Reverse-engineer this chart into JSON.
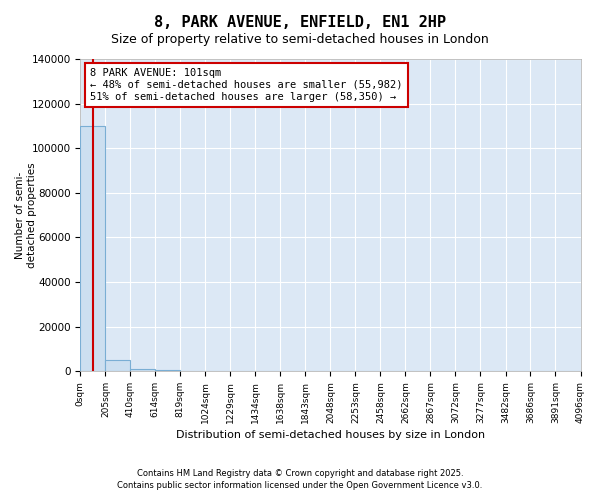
{
  "title": "8, PARK AVENUE, ENFIELD, EN1 2HP",
  "subtitle": "Size of property relative to semi-detached houses in London",
  "xlabel": "Distribution of semi-detached houses by size in London",
  "ylabel": "Number of semi-\ndetached properties",
  "annotation_title": "8 PARK AVENUE: 101sqm",
  "annotation_line1": "← 48% of semi-detached houses are smaller (55,982)",
  "annotation_line2": "51% of semi-detached houses are larger (58,350) →",
  "property_size": 101,
  "bin_edges": [
    0,
    205,
    410,
    614,
    819,
    1024,
    1229,
    1434,
    1638,
    1843,
    2048,
    2253,
    2458,
    2662,
    2867,
    3072,
    3277,
    3482,
    3686,
    3891,
    4096
  ],
  "bin_labels": [
    "0sqm",
    "205sqm",
    "410sqm",
    "614sqm",
    "819sqm",
    "1024sqm",
    "1229sqm",
    "1434sqm",
    "1638sqm",
    "1843sqm",
    "2048sqm",
    "2253sqm",
    "2458sqm",
    "2662sqm",
    "2867sqm",
    "3072sqm",
    "3277sqm",
    "3482sqm",
    "3686sqm",
    "3891sqm",
    "4096sqm"
  ],
  "bar_heights": [
    110000,
    5000,
    800,
    400,
    200,
    130,
    90,
    60,
    50,
    40,
    30,
    25,
    20,
    18,
    15,
    12,
    10,
    8,
    6,
    5
  ],
  "bar_color": "#ccdff0",
  "bar_edge_color": "#7aaed4",
  "property_line_color": "#cc0000",
  "annotation_box_edge": "#cc0000",
  "plot_bg_color": "#dce8f5",
  "figure_bg_color": "#ffffff",
  "grid_color": "#ffffff",
  "ylim": [
    0,
    140000
  ],
  "yticks": [
    0,
    20000,
    40000,
    60000,
    80000,
    100000,
    120000,
    140000
  ],
  "footer_line1": "Contains HM Land Registry data © Crown copyright and database right 2025.",
  "footer_line2": "Contains public sector information licensed under the Open Government Licence v3.0."
}
